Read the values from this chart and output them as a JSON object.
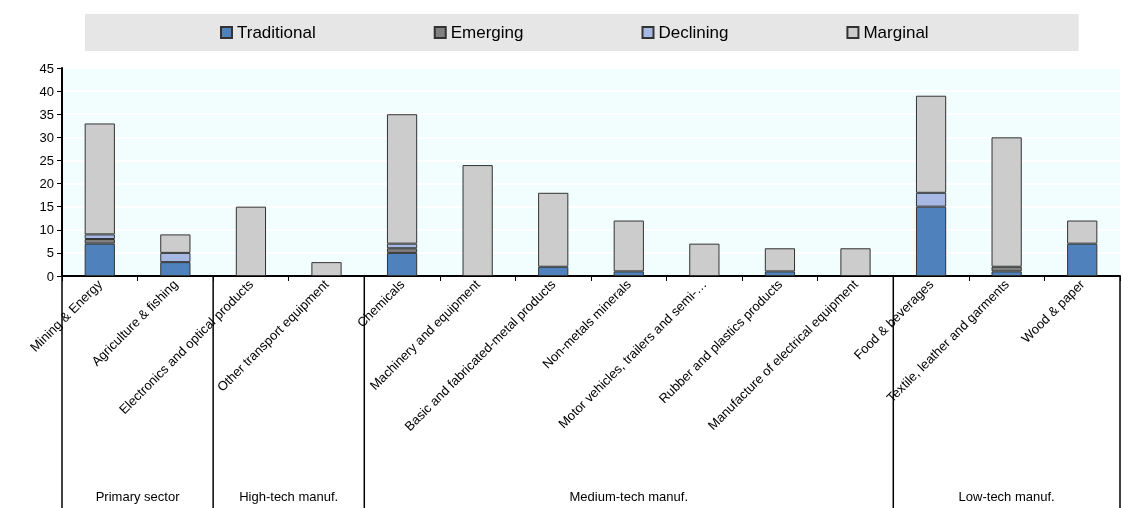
{
  "chart_data": {
    "type": "bar",
    "stacked": true,
    "categories": [
      "Mining & Energy",
      "Agriculture & fishing",
      "Electronics and optical products",
      "Other transport equipment",
      "Chemicals",
      "Machinery and equipment",
      "Basic and fabricated-metal products",
      "Non-metals minerals",
      "Motor vehicles, trailers and semi-…",
      "Rubber and plastics products",
      "Manufacture of electrical equipment",
      "Food & beverages",
      "Textile, leather and garments",
      "Wood & paper"
    ],
    "series": [
      {
        "name": "Traditional",
        "color": "#4f81bd",
        "values": [
          7,
          3,
          0,
          0,
          5,
          0,
          2,
          1,
          0,
          1,
          0,
          15,
          1,
          7
        ]
      },
      {
        "name": "Emerging",
        "color": "#808080",
        "values": [
          1,
          0,
          0,
          0,
          1,
          0,
          0,
          0,
          0,
          0,
          0,
          0,
          1,
          0
        ]
      },
      {
        "name": "Declining",
        "color": "#a6b8e3",
        "values": [
          1,
          2,
          0,
          0,
          1,
          0,
          0,
          0,
          0,
          0,
          0,
          3,
          0,
          0
        ]
      },
      {
        "name": "Marginal",
        "color": "#cccccc",
        "values": [
          24,
          4,
          15,
          3,
          28,
          24,
          16,
          11,
          7,
          5,
          6,
          21,
          28,
          5
        ]
      }
    ],
    "ylim": [
      0,
      45
    ],
    "yticks": [
      0,
      5,
      10,
      15,
      20,
      25,
      30,
      35,
      40,
      45
    ],
    "grid": "y",
    "legend": "top",
    "annotations": [
      "Primary sector",
      "High-tech manuf.",
      "Medium-tech manuf.",
      "Low-tech manuf."
    ]
  }
}
